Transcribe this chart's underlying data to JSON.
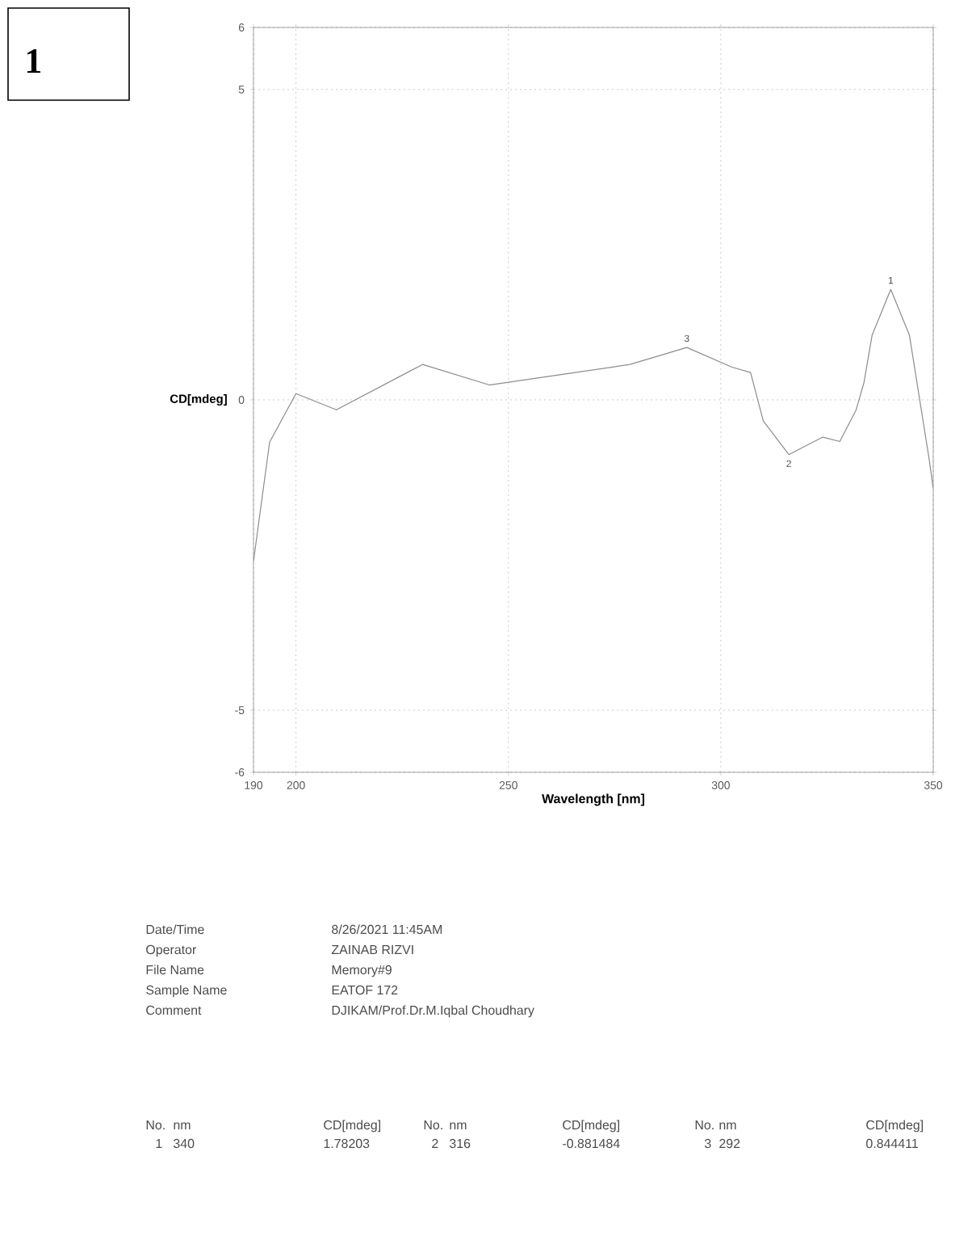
{
  "chart_data": {
    "type": "line",
    "xlabel": "Wavelength [nm]",
    "ylabel": "CD[mdeg]",
    "x": [
      190,
      193.8,
      200,
      209.5,
      229.8,
      245.5,
      278.6,
      292,
      302.5,
      307,
      310,
      316,
      324,
      328,
      331.8,
      333.7,
      335.6,
      340,
      344.4,
      347,
      349,
      350
    ],
    "series": [
      {
        "color": "#8c8c8c",
        "values": [
          -2.6,
          -0.68,
          0.1,
          -0.16,
          0.57,
          0.24,
          0.57,
          0.844,
          0.53,
          0.44,
          -0.34,
          -0.881,
          -0.6,
          -0.67,
          -0.17,
          0.28,
          1.04,
          1.78,
          1.04,
          -0.08,
          -0.94,
          -1.43
        ]
      }
    ],
    "xlim": [
      190,
      350
    ],
    "ylim": [
      -6,
      6
    ],
    "xticks": [
      190,
      200,
      250,
      300,
      350
    ],
    "yticks": [
      -6,
      -5,
      0,
      5,
      6
    ],
    "grid": true,
    "line_style": "solid",
    "marker": "none",
    "annotations": [
      {
        "text": "1",
        "x": 340,
        "y": 1.78
      },
      {
        "text": "2",
        "x": 316,
        "y": -0.881
      },
      {
        "text": "3",
        "x": 292,
        "y": 0.844
      },
      "1",
      "Date/Time",
      "8/26/2021 11:45AM",
      "Operator",
      "ZAINAB RIZVI",
      "File Name",
      "Memory#9",
      "Sample Name",
      "EATOF 172",
      "Comment",
      "DJIKAM/Prof.Dr.M.Iqbal Choudhary",
      "No.",
      "nm",
      "CD[mdeg]",
      "No.",
      "nm",
      "CD[mdeg]",
      "No.",
      "nm",
      "CD[mdeg]",
      "1",
      "340",
      "1.78203",
      "2",
      "316",
      "-0.881484",
      "3",
      "292",
      "0.844411"
    ]
  }
}
